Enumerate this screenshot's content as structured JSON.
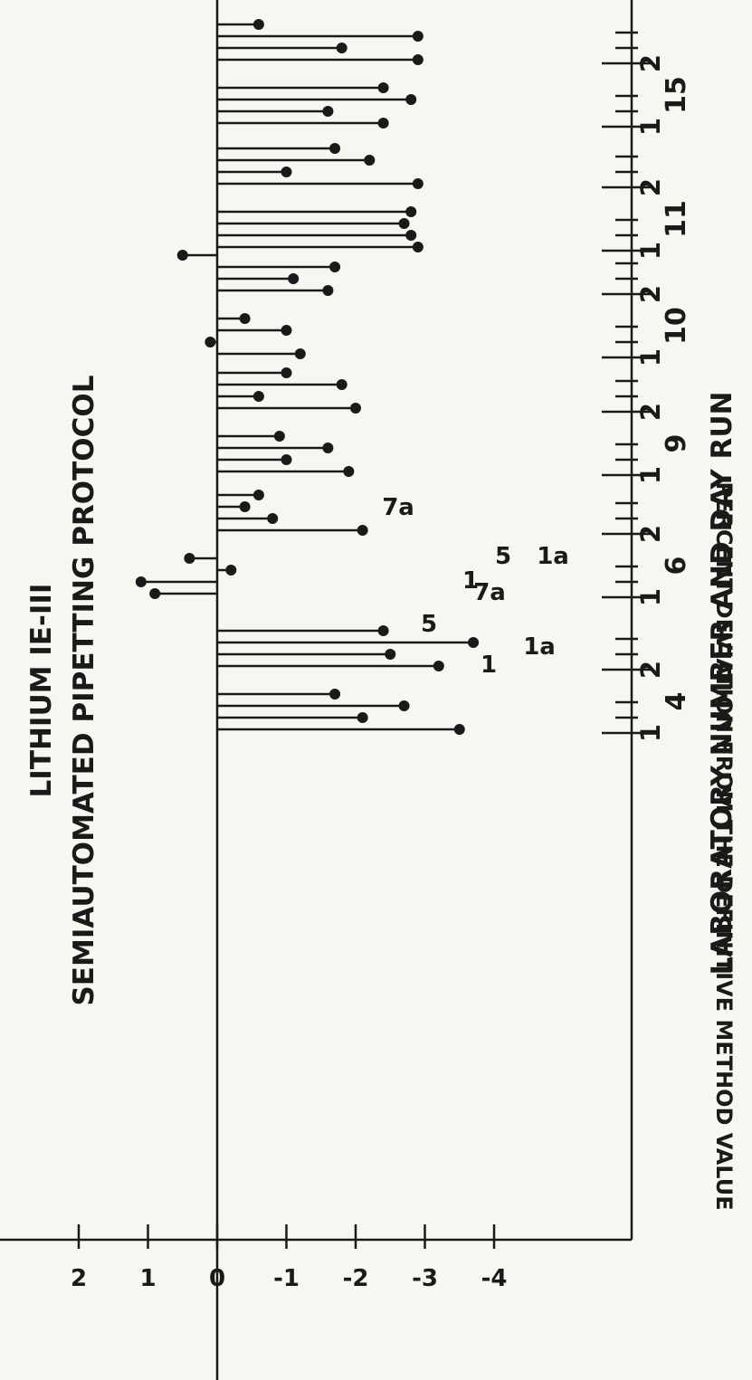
{
  "chart_data": {
    "type": "bar",
    "title": "LITHIUM IE-III",
    "subtitle": "SEMIAUTOMATED PIPETTING PROTOCOL",
    "xlabel": "LABORATORY NUMBER AND DAY RUN",
    "ylabel": "PERCENT DEVIATION FROM THE DEFINITIVE METHOD VALUE",
    "ylim": [
      -4,
      2
    ],
    "y_ticks": [
      "2",
      "1",
      "0",
      "-1",
      "-2",
      "-3",
      "-4"
    ],
    "grid": false,
    "groups": [
      {
        "lab": "4",
        "days": [
          {
            "day": "1",
            "values": [
              -3.5,
              -2.1,
              -2.7,
              -1.7
            ]
          },
          {
            "day": "2",
            "values": [
              -3.2,
              -2.5,
              -3.7,
              -2.4
            ]
          }
        ]
      },
      {
        "lab": "6",
        "days": [
          {
            "day": "1",
            "values": [
              0.9,
              1.1,
              -0.2,
              0.4
            ]
          },
          {
            "day": "2",
            "values": [
              -2.1,
              -0.8,
              -0.4,
              -0.6
            ]
          }
        ]
      },
      {
        "lab": "9",
        "days": [
          {
            "day": "1",
            "values": [
              -1.9,
              -1.0,
              -1.6,
              -0.9
            ]
          },
          {
            "day": "2",
            "values": [
              -2.0,
              -0.6,
              -1.8,
              -1.0
            ]
          }
        ]
      },
      {
        "lab": "10",
        "days": [
          {
            "day": "1",
            "values": [
              -1.2,
              0.1,
              -1.0,
              -0.4
            ]
          },
          {
            "day": "2",
            "values": [
              -1.6,
              -1.1,
              -1.7,
              0.5
            ]
          }
        ]
      },
      {
        "lab": "11",
        "days": [
          {
            "day": "1",
            "values": [
              -2.9,
              -2.8,
              -2.7,
              -2.8
            ]
          },
          {
            "day": "2",
            "values": [
              -2.9,
              -1.0,
              -2.2,
              -1.7
            ]
          }
        ]
      },
      {
        "lab": "15",
        "days": [
          {
            "day": "1",
            "values": [
              -2.4,
              -1.6,
              -2.8,
              -2.4
            ]
          },
          {
            "day": "2",
            "values": [
              -2.9,
              -1.8,
              -2.9,
              -0.6
            ]
          }
        ]
      }
    ],
    "annotations": [
      "1",
      "5",
      "1a",
      "7a",
      "1",
      "5",
      "1a",
      "7a"
    ]
  }
}
